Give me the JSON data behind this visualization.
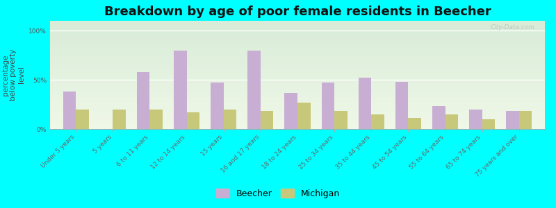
{
  "title": "Breakdown by age of poor female residents in Beecher",
  "ylabel": "percentage\nbelow poverty\nlevel",
  "categories": [
    "Under 5 years",
    "5 years",
    "6 to 11 years",
    "12 to 14 years",
    "15 years",
    "16 and 17 years",
    "18 to 24 years",
    "25 to 34 years",
    "35 to 44 years",
    "45 to 54 years",
    "55 to 64 years",
    "65 to 74 years",
    "75 years and over"
  ],
  "beecher_values": [
    38,
    0,
    58,
    80,
    47,
    80,
    37,
    47,
    52,
    48,
    23,
    20,
    18
  ],
  "michigan_values": [
    20,
    20,
    20,
    17,
    20,
    18,
    27,
    18,
    15,
    11,
    15,
    10,
    18
  ],
  "beecher_color": "#c9aed4",
  "michigan_color": "#c8c87a",
  "background_color": "#00ffff",
  "yticks": [
    0,
    50,
    100
  ],
  "ylim": [
    0,
    110
  ],
  "bar_width": 0.35,
  "title_fontsize": 13,
  "axis_label_fontsize": 7.5,
  "tick_fontsize": 6.5,
  "legend_fontsize": 9,
  "watermark": "City-Data.com"
}
